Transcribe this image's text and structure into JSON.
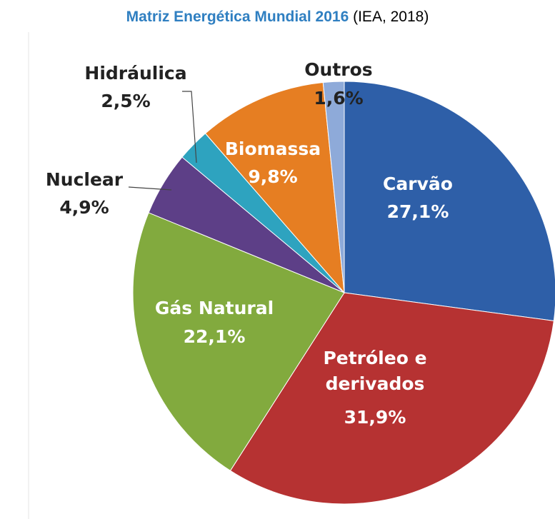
{
  "chart_data": {
    "type": "pie",
    "title": "Matriz Energética Mundial 2016",
    "source": "(IEA, 2018)",
    "categories": [
      "Carvão",
      "Petróleo e derivados",
      "Gás Natural",
      "Nuclear",
      "Hidráulica",
      "Biomassa",
      "Outros"
    ],
    "values": [
      27.1,
      31.9,
      22.1,
      4.9,
      2.5,
      9.8,
      1.6
    ],
    "value_labels": [
      "27,1%",
      "31,9%",
      "22,1%",
      "4,9%",
      "2,5%",
      "9,8%",
      "1,6%"
    ],
    "colors": [
      "#2e5fa8",
      "#b63232",
      "#82aa3e",
      "#5d3f87",
      "#2ea3bf",
      "#e67e22",
      "#8eaad9"
    ]
  }
}
